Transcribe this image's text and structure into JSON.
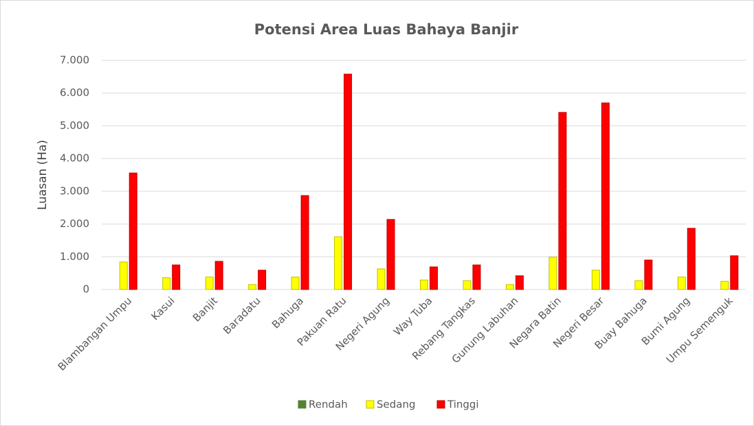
{
  "chart_data": {
    "type": "bar",
    "title": "Potensi Area Luas Bahaya Banjir",
    "y_label": "Luasan (Ha)",
    "categories": [
      "Blambangan Umpu",
      "Kasui",
      "Banjit",
      "Baradatu",
      "Bahuga",
      "Pakuan Ratu",
      "Negeri Agung",
      "Way Tuba",
      "Rebang Tangkas",
      "Gunung Labuhan",
      "Negara Batin",
      "Negeri Besar",
      "Buay Bahuga",
      "Bumi Agung",
      "Umpu Semenguk"
    ],
    "series": [
      {
        "name": "Rendah",
        "color": "#548235",
        "values": [
          0,
          0,
          0,
          0,
          0,
          0,
          0,
          0,
          0,
          0,
          0,
          0,
          0,
          0,
          0
        ]
      },
      {
        "name": "Sedang",
        "color": "#ffff00",
        "values": [
          840,
          360,
          380,
          150,
          380,
          1610,
          630,
          290,
          270,
          150,
          990,
          590,
          270,
          380,
          250
        ]
      },
      {
        "name": "Tinggi",
        "color": "#ff0000",
        "values": [
          3560,
          750,
          860,
          590,
          2870,
          6580,
          2140,
          690,
          750,
          420,
          5410,
          5700,
          900,
          1870,
          1030
        ]
      }
    ],
    "ylim": [
      0,
      7000
    ],
    "yticks": [
      0,
      {
        "value": 1000,
        "label": "1.000"
      },
      {
        "value": 2000,
        "label": "2.000"
      },
      {
        "value": 3000,
        "label": "3.000"
      },
      {
        "value": 4000,
        "label": "4.000"
      },
      {
        "value": 5000,
        "label": "5.000"
      },
      {
        "value": 6000,
        "label": "6.000"
      },
      {
        "value": 7000,
        "label": "7.000"
      }
    ],
    "grid": true,
    "legend": "bottom"
  }
}
